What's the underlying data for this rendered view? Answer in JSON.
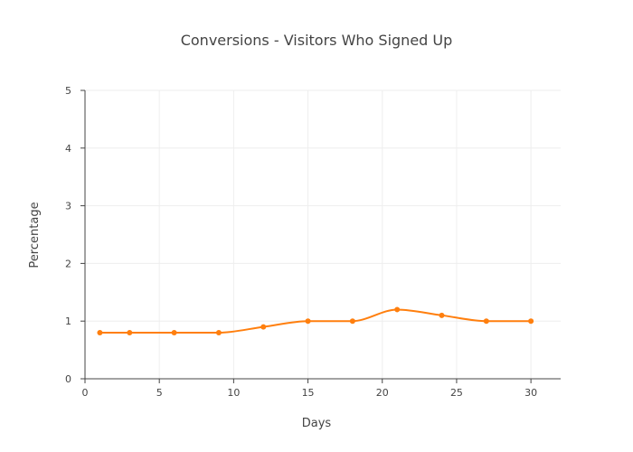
{
  "chart_data": {
    "type": "line",
    "title": "Conversions - Visitors Who Signed Up",
    "xlabel": "Days",
    "ylabel": "Percentage",
    "xlim": [
      0,
      32
    ],
    "ylim": [
      0,
      5
    ],
    "xticks": [
      0,
      5,
      10,
      15,
      20,
      25,
      30
    ],
    "yticks": [
      0,
      1,
      2,
      3,
      4,
      5
    ],
    "grid": true,
    "line_shape": "spline",
    "series": [
      {
        "color": "#ff7f0e",
        "x": [
          1,
          3,
          6,
          9,
          12,
          15,
          18,
          21,
          24,
          27,
          30
        ],
        "y": [
          0.8,
          0.8,
          0.8,
          0.8,
          0.9,
          1.0,
          1.0,
          1.2,
          1.1,
          1.0,
          1.0
        ]
      }
    ]
  }
}
